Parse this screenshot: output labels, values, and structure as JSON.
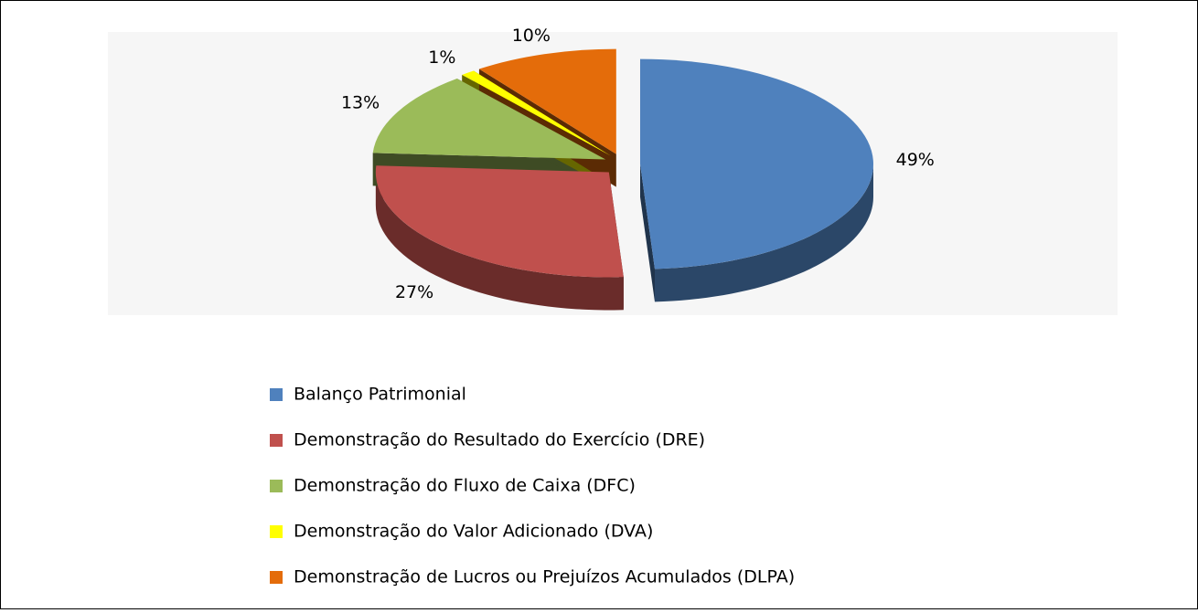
{
  "chart_data": {
    "type": "pie",
    "categories": [
      "Balanço Patrimonial",
      "Demonstração do Resultado do Exercício (DRE)",
      "Demonstração do Fluxo de Caixa (DFC)",
      "Demonstração do Valor Adicionado (DVA)",
      "Demonstração de Lucros ou Prejuízos Acumulados (DLPA)"
    ],
    "values": [
      49,
      27,
      13,
      1,
      10
    ],
    "value_labels": [
      "49%",
      "27%",
      "13%",
      "1%",
      "10%"
    ],
    "colors": [
      "#4f81bd",
      "#c0504d",
      "#9bbb59",
      "#ffff00",
      "#e46c0a"
    ],
    "legend": "bottom"
  }
}
